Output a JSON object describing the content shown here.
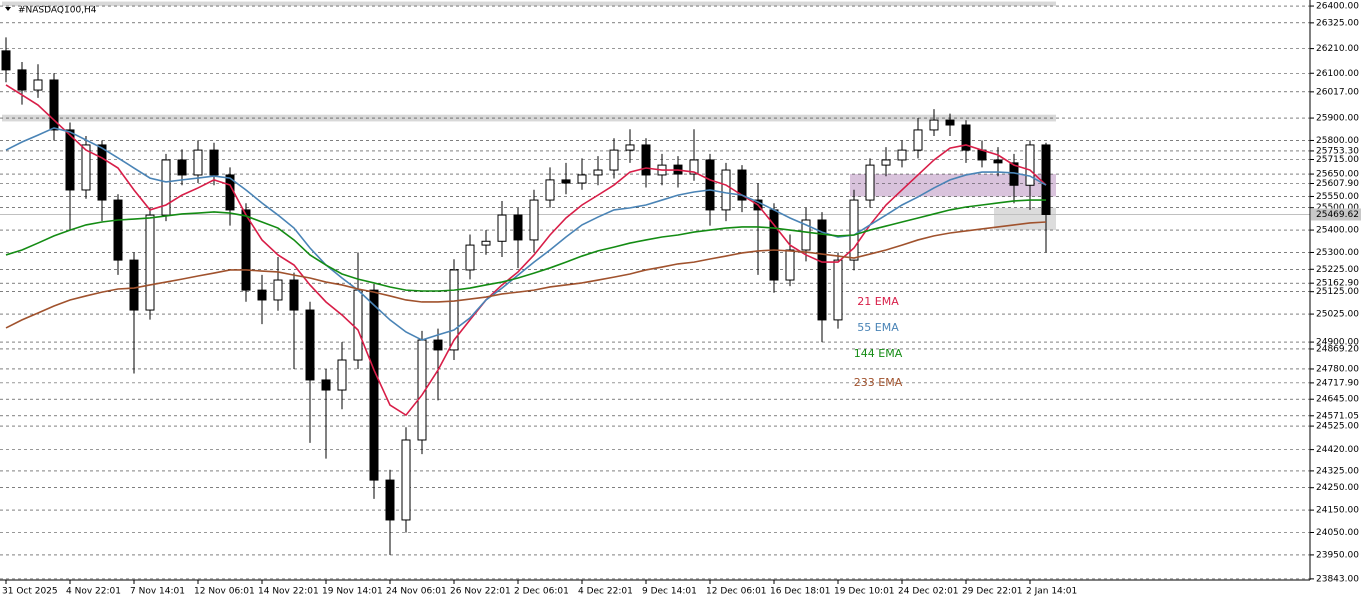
{
  "chart_data": {
    "type": "candlestick",
    "title": "#NASDAQ100,H4",
    "categories": [
      "31 Oct 2025",
      null,
      null,
      null,
      "4 Nov 22:01",
      null,
      null,
      null,
      "7 Nov 14:01",
      null,
      null,
      null,
      "12 Nov 06:01",
      null,
      null,
      null,
      "14 Nov 22:01",
      null,
      null,
      null,
      "19 Nov 14:01",
      null,
      null,
      null,
      "24 Nov 06:01",
      null,
      null,
      null,
      "26 Nov 22:01",
      null,
      null,
      null,
      "2 Dec 06:01",
      null,
      null,
      null,
      "4 Dec 22:01",
      null,
      null,
      null,
      "9 Dec 14:01",
      null,
      null,
      null,
      "12 Dec 06:01",
      null,
      null,
      null,
      "16 Dec 18:01",
      null,
      null,
      null,
      "19 Dec 10:01",
      null,
      null,
      null,
      "24 Dec 02:01",
      null,
      null,
      null,
      "29 Dec 22:01",
      null,
      null,
      null,
      "2 Jan 14:01",
      null
    ],
    "open": [
      26200,
      26115,
      26025,
      26070,
      25847,
      25579,
      25780,
      25534,
      25266,
      25043,
      25467,
      25713,
      25646,
      25757,
      25646,
      25490,
      25132,
      25088,
      25177,
      25043,
      24731,
      24686,
      24820,
      25132,
      24284,
      24106,
      24463,
      24909,
      24865,
      25222,
      25333,
      25350,
      25467,
      25356,
      25534,
      25624,
      25610,
      25646,
      25668,
      25757,
      25780,
      25646,
      25690,
      25650,
      25713,
      25490,
      25668,
      25534,
      25490,
      25177,
      25311,
      25445,
      24999,
      25266,
      25534,
      25690,
      25713,
      25757,
      25847,
      25891,
      25869,
      25757,
      25713,
      25700,
      25600,
      25780
    ],
    "high": [
      26260,
      26150,
      26140,
      26100,
      25880,
      25820,
      25800,
      25560,
      25300,
      25500,
      25740,
      25760,
      25800,
      25790,
      25680,
      25520,
      25200,
      25280,
      25210,
      25080,
      24780,
      24900,
      25300,
      25160,
      24330,
      24520,
      24950,
      24960,
      25270,
      25380,
      25400,
      25530,
      25500,
      25580,
      25680,
      25700,
      25720,
      25730,
      25810,
      25850,
      25810,
      25740,
      25730,
      25850,
      25740,
      25700,
      25690,
      25610,
      25520,
      25380,
      25500,
      25480,
      25300,
      25580,
      25720,
      25770,
      25800,
      25900,
      25940,
      25920,
      25890,
      25800,
      25770,
      25740,
      25800,
      25790
    ],
    "low": [
      26060,
      25960,
      25990,
      25800,
      25400,
      25540,
      25440,
      25200,
      24760,
      25000,
      25440,
      25600,
      25610,
      25600,
      25420,
      25080,
      24980,
      25040,
      24780,
      24450,
      24380,
      24600,
      24780,
      24200,
      23950,
      24050,
      24400,
      24640,
      24820,
      25180,
      25290,
      25280,
      25230,
      25300,
      25500,
      25560,
      25580,
      25600,
      25630,
      25700,
      25590,
      25600,
      25590,
      25620,
      25420,
      25440,
      25480,
      25200,
      25120,
      25150,
      25260,
      24900,
      24960,
      25220,
      25500,
      25640,
      25680,
      25720,
      25820,
      25820,
      25700,
      25680,
      25640,
      25520,
      25490,
      25300
    ],
    "close": [
      26115,
      26025,
      26070,
      25847,
      25579,
      25780,
      25534,
      25266,
      25043,
      25467,
      25713,
      25646,
      25757,
      25646,
      25490,
      25132,
      25088,
      25177,
      25043,
      24731,
      24686,
      24820,
      25132,
      24284,
      24106,
      24463,
      24909,
      24865,
      25222,
      25333,
      25350,
      25467,
      25356,
      25534,
      25624,
      25610,
      25646,
      25668,
      25757,
      25780,
      25646,
      25690,
      25650,
      25713,
      25490,
      25668,
      25534,
      25490,
      25177,
      25311,
      25445,
      24999,
      25266,
      25534,
      25690,
      25713,
      25757,
      25847,
      25891,
      25869,
      25757,
      25713,
      25700,
      25600,
      25780,
      25469.62
    ],
    "series": [
      {
        "name": "21 EMA",
        "color": "#d81e48",
        "values": [
          26048,
          26003,
          25958,
          25891,
          25824,
          25757,
          25722,
          25677,
          25579,
          25490,
          25512,
          25556,
          25588,
          25624,
          25601,
          25467,
          25356,
          25289,
          25244,
          25155,
          25079,
          25021,
          24954,
          24775,
          24619,
          24574,
          24664,
          24775,
          24909,
          24999,
          25088,
          25155,
          25213,
          25289,
          25378,
          25454,
          25512,
          25556,
          25601,
          25659,
          25677,
          25668,
          25668,
          25659,
          25624,
          25601,
          25556,
          25512,
          25423,
          25333,
          25289,
          25257,
          25257,
          25320,
          25423,
          25512,
          25579,
          25646,
          25713,
          25766,
          25780,
          25757,
          25735,
          25690,
          25668,
          25601
        ]
      },
      {
        "name": "55 EMA",
        "color": "#4a84b6",
        "values": [
          25757,
          25793,
          25824,
          25856,
          25838,
          25802,
          25766,
          25722,
          25677,
          25632,
          25615,
          25624,
          25632,
          25641,
          25632,
          25579,
          25521,
          25467,
          25409,
          25320,
          25244,
          25186,
          25132,
          25065,
          24999,
          24945,
          24909,
          24932,
          24954,
          25008,
          25088,
          25141,
          25199,
          25257,
          25311,
          25369,
          25423,
          25458,
          25490,
          25499,
          25512,
          25534,
          25556,
          25570,
          25579,
          25566,
          25556,
          25525,
          25490,
          25454,
          25423,
          25391,
          25369,
          25378,
          25423,
          25467,
          25512,
          25548,
          25588,
          25624,
          25646,
          25659,
          25659,
          25655,
          25641,
          25601
        ]
      },
      {
        "name": "144 EMA",
        "color": "#148c14",
        "values": [
          25289,
          25311,
          25342,
          25374,
          25400,
          25423,
          25436,
          25445,
          25449,
          25454,
          25463,
          25472,
          25476,
          25481,
          25476,
          25463,
          25436,
          25409,
          25356,
          25289,
          25244,
          25204,
          25181,
          25164,
          25146,
          25132,
          25128,
          25128,
          25132,
          25141,
          25155,
          25168,
          25186,
          25208,
          25231,
          25257,
          25284,
          25307,
          25324,
          25342,
          25356,
          25369,
          25378,
          25391,
          25400,
          25409,
          25414,
          25414,
          25409,
          25400,
          25391,
          25382,
          25374,
          25378,
          25400,
          25418,
          25436,
          25454,
          25472,
          25490,
          25503,
          25512,
          25521,
          25530,
          25534,
          25534
        ]
      },
      {
        "name": "233 EMA",
        "color": "#a0522d",
        "values": [
          24963,
          24999,
          25030,
          25061,
          25088,
          25106,
          25123,
          25137,
          25141,
          25155,
          25168,
          25181,
          25195,
          25208,
          25222,
          25222,
          25217,
          25213,
          25199,
          25186,
          25168,
          25155,
          25137,
          25123,
          25106,
          25088,
          25079,
          25079,
          25083,
          25092,
          25101,
          25115,
          25123,
          25132,
          25146,
          25155,
          25164,
          25177,
          25190,
          25204,
          25222,
          25235,
          25249,
          25257,
          25271,
          25284,
          25298,
          25307,
          25311,
          25307,
          25302,
          25293,
          25284,
          25275,
          25293,
          25311,
          25333,
          25356,
          25374,
          25387,
          25396,
          25405,
          25414,
          25423,
          25432,
          25436
        ]
      }
    ],
    "zones": [
      {
        "from": 26400,
        "to": 26420,
        "start": 0,
        "color": "#d8d8d8"
      },
      {
        "from": 25885,
        "to": 25915,
        "start": 0,
        "color": "#d8d8d8"
      },
      {
        "from": 25550,
        "to": 25650,
        "start": 53,
        "color": "#d9c3dc"
      },
      {
        "from": 25400,
        "to": 25500,
        "start": 62,
        "color": "#dcdcdc"
      }
    ],
    "current_price": {
      "value": 25469.62,
      "label": "25469.62"
    },
    "ylim": [
      23838,
      26427
    ],
    "yticks": [
      {
        "value": 26400,
        "label": "26400.00"
      },
      {
        "value": 26325,
        "label": "26325.00"
      },
      {
        "value": 26210,
        "label": "26210.00"
      },
      {
        "value": 26100,
        "label": "26100.00"
      },
      {
        "value": 26017,
        "label": "26017.00"
      },
      {
        "value": 25900,
        "label": "25900.00"
      },
      {
        "value": 25800,
        "label": "25800.00"
      },
      {
        "value": 25753.3,
        "label": "25753.30"
      },
      {
        "value": 25715,
        "label": "25715.00"
      },
      {
        "value": 25650,
        "label": "25650.00"
      },
      {
        "value": 25607.9,
        "label": "25607.90"
      },
      {
        "value": 25550,
        "label": "25550.00"
      },
      {
        "value": 25500,
        "label": "25500.00"
      },
      {
        "value": 25400,
        "label": "25400.00"
      },
      {
        "value": 25300,
        "label": "25300.00"
      },
      {
        "value": 25225,
        "label": "25225.00"
      },
      {
        "value": 25162.9,
        "label": "25162.90"
      },
      {
        "value": 25125,
        "label": "25125.00"
      },
      {
        "value": 25025,
        "label": "25025.00"
      },
      {
        "value": 24900,
        "label": "24900.00"
      },
      {
        "value": 24869.2,
        "label": "24869.20"
      },
      {
        "value": 24780,
        "label": "24780.00"
      },
      {
        "value": 24717.9,
        "label": "24717.90"
      },
      {
        "value": 24645,
        "label": "24645.00"
      },
      {
        "value": 24571.05,
        "label": "24571.05"
      },
      {
        "value": 24525,
        "label": "24525.00"
      },
      {
        "value": 24420,
        "label": "24420.00"
      },
      {
        "value": 24325,
        "label": "24325.00"
      },
      {
        "value": 24250,
        "label": "24250.00"
      },
      {
        "value": 24150,
        "label": "24150.00"
      },
      {
        "value": 24050,
        "label": "24050.00"
      },
      {
        "value": 23950,
        "label": "23950.00"
      },
      {
        "value": 23843,
        "label": "23843.00"
      }
    ],
    "grid": true
  }
}
